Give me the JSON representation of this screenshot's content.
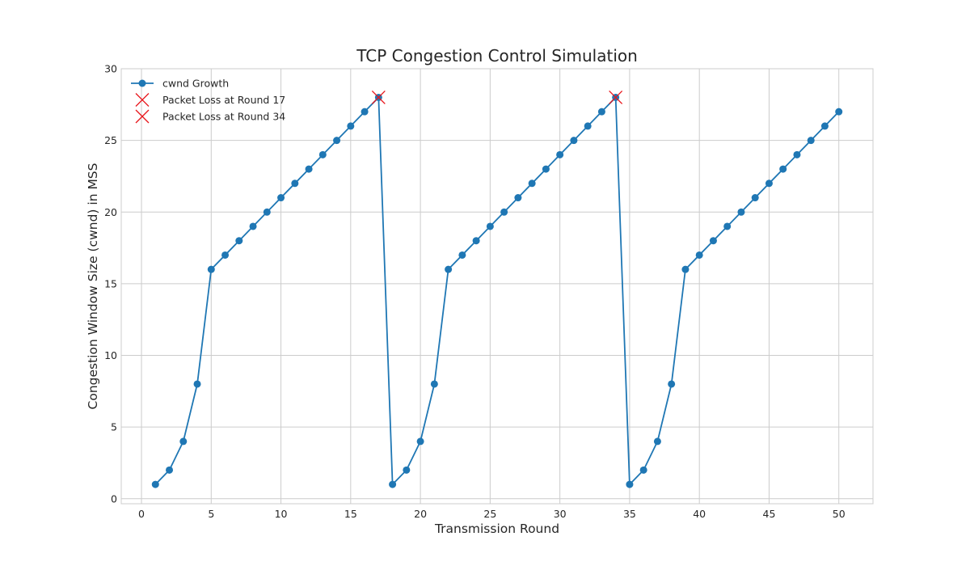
{
  "chart_data": {
    "type": "line",
    "title": "TCP Congestion Control Simulation",
    "xlabel": "Transmission Round",
    "ylabel": "Congestion Window Size (cwnd) in MSS",
    "xlim": [
      -1.45,
      52.45
    ],
    "ylim": [
      -0.35,
      30
    ],
    "xticks": [
      0,
      5,
      10,
      15,
      20,
      25,
      30,
      35,
      40,
      45,
      50
    ],
    "yticks": [
      0,
      5,
      10,
      15,
      20,
      25,
      30
    ],
    "grid": true,
    "legend_position": "top-left",
    "series": [
      {
        "name": "cwnd Growth",
        "color": "#1f77b4",
        "marker": "circle",
        "x": [
          1,
          2,
          3,
          4,
          5,
          6,
          7,
          8,
          9,
          10,
          11,
          12,
          13,
          14,
          15,
          16,
          17,
          18,
          19,
          20,
          21,
          22,
          23,
          24,
          25,
          26,
          27,
          28,
          29,
          30,
          31,
          32,
          33,
          34,
          35,
          36,
          37,
          38,
          39,
          40,
          41,
          42,
          43,
          44,
          45,
          46,
          47,
          48,
          49,
          50
        ],
        "y": [
          1,
          2,
          4,
          8,
          16,
          17,
          18,
          19,
          20,
          21,
          22,
          23,
          24,
          25,
          26,
          27,
          28,
          1,
          2,
          4,
          8,
          16,
          17,
          18,
          19,
          20,
          21,
          22,
          23,
          24,
          25,
          26,
          27,
          28,
          1,
          2,
          4,
          8,
          16,
          17,
          18,
          19,
          20,
          21,
          22,
          23,
          24,
          25,
          26,
          27
        ]
      }
    ],
    "loss_markers": [
      {
        "name": "Packet Loss at Round 17",
        "x": 17,
        "y": 28,
        "color": "#e8161c",
        "marker": "x"
      },
      {
        "name": "Packet Loss at Round 34",
        "x": 34,
        "y": 28,
        "color": "#e8161c",
        "marker": "x"
      }
    ]
  }
}
